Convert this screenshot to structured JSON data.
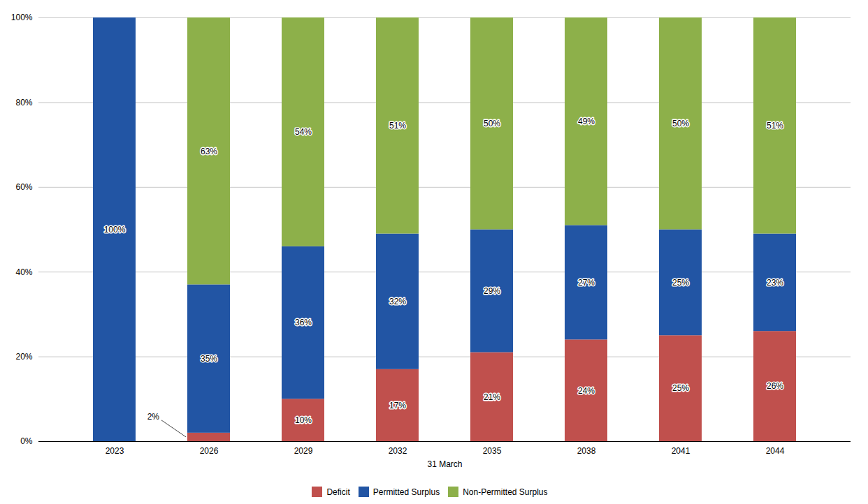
{
  "chart_data": {
    "type": "bar",
    "stacked": true,
    "categories": [
      "2023",
      "2026",
      "2029",
      "2032",
      "2035",
      "2038",
      "2041",
      "2044"
    ],
    "series": [
      {
        "name": "Deficit",
        "color": "#c0504d",
        "values": [
          0,
          2,
          10,
          17,
          21,
          24,
          25,
          26
        ],
        "value_labels": [
          null,
          "2%",
          "10%",
          "17%",
          "21%",
          "24%",
          "25%",
          "26%"
        ]
      },
      {
        "name": "Permitted Surplus",
        "color": "#2255a4",
        "values": [
          100,
          35,
          36,
          32,
          29,
          27,
          25,
          23
        ],
        "value_labels": [
          "100%",
          "35%",
          "36%",
          "32%",
          "29%",
          "27%",
          "25%",
          "23%"
        ]
      },
      {
        "name": "Non-Permitted Surplus",
        "color": "#8db04a",
        "values": [
          0,
          63,
          54,
          51,
          50,
          49,
          50,
          51
        ],
        "value_labels": [
          null,
          "63%",
          "54%",
          "51%",
          "50%",
          "49%",
          "50%",
          "51%"
        ]
      }
    ],
    "xlabel": "31 March",
    "ylim": [
      0,
      100
    ],
    "yticks": [
      {
        "value": 0,
        "label": "0%"
      },
      {
        "value": 20,
        "label": "20%"
      },
      {
        "value": 40,
        "label": "40%"
      },
      {
        "value": 60,
        "label": "60%"
      },
      {
        "value": 80,
        "label": "80%"
      },
      {
        "value": 100,
        "label": "100%"
      }
    ],
    "grid": true,
    "legend": "bottom",
    "data_labels": true
  }
}
